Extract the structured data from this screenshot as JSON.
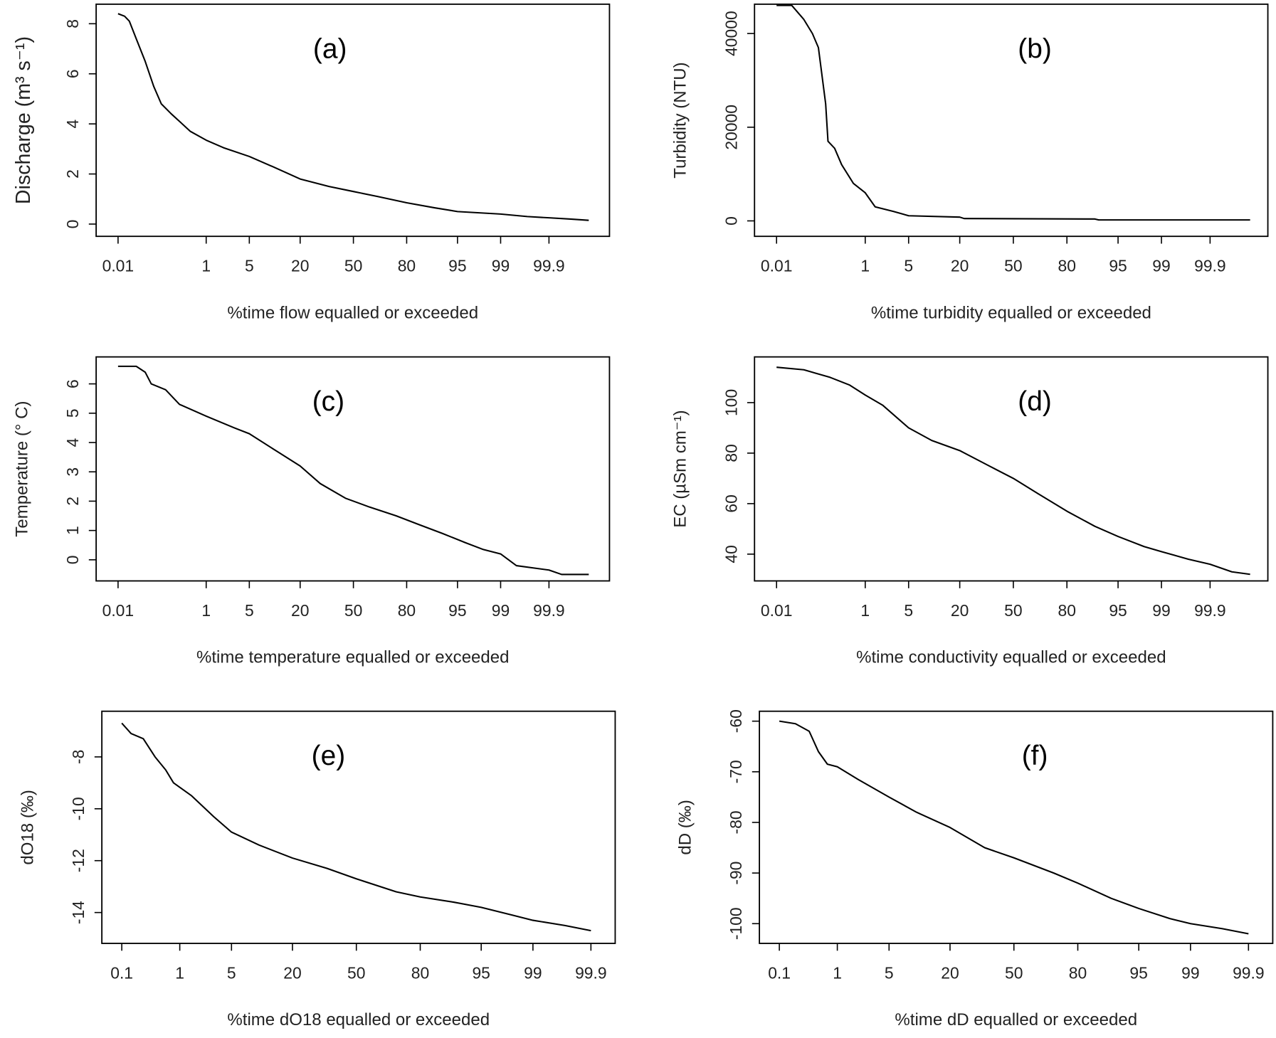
{
  "chart_data": [
    {
      "type": "line",
      "title": "(a)",
      "x_label": "%time flow equalled or exceeded",
      "y_label": "Discharge (m³ s⁻¹)",
      "xscale": "probit",
      "color": "#000000",
      "x": [
        0.01,
        0.015,
        0.02,
        0.03,
        0.05,
        0.08,
        0.12,
        0.2,
        0.3,
        0.5,
        1,
        2,
        5,
        10,
        20,
        35,
        50,
        65,
        80,
        90,
        95,
        99,
        99.7,
        99.9,
        99.97,
        99.99
      ],
      "values": [
        8.4,
        8.3,
        8.1,
        7.4,
        6.5,
        5.5,
        4.8,
        4.4,
        4.1,
        3.7,
        3.35,
        3.05,
        2.7,
        2.3,
        1.8,
        1.5,
        1.3,
        1.1,
        0.85,
        0.65,
        0.5,
        0.4,
        0.3,
        0.25,
        0.2,
        0.15
      ],
      "xlim": [
        0.0024,
        99.9974
      ],
      "xticks": [
        0.01,
        1,
        5,
        20,
        50,
        80,
        95,
        99,
        99.9
      ],
      "ylim": [
        -0.49,
        8.78
      ],
      "yticks": [
        0,
        2,
        4,
        6,
        8
      ]
    },
    {
      "type": "line",
      "title": "(b)",
      "x_label": "%time turbidity equalled or exceeded",
      "y_label": "Turbidity  (NTU)",
      "xscale": "probit",
      "color": "#000000",
      "x": [
        0.01,
        0.025,
        0.05,
        0.08,
        0.11,
        0.16,
        0.18,
        0.25,
        0.35,
        0.6,
        1,
        1.5,
        3,
        5,
        20,
        22,
        90,
        91,
        99.99
      ],
      "values": [
        46000,
        46000,
        43000,
        40000,
        37000,
        25000,
        17000,
        15500,
        12000,
        8000,
        6000,
        3000,
        2000,
        1100,
        800,
        500,
        400,
        200,
        200
      ],
      "xlim": [
        0.0024,
        99.9968
      ],
      "xticks": [
        0.01,
        1,
        5,
        20,
        50,
        80,
        95,
        99,
        99.9
      ],
      "ylim": [
        -3300,
        46260
      ],
      "yticks": [
        0,
        20000,
        40000
      ]
    },
    {
      "type": "line",
      "title": "(c)",
      "x_label": "%time temperature equalled or exceeded",
      "y_label": "Temperature (° C)",
      "xscale": "probit",
      "color": "#000000",
      "x": [
        0.01,
        0.03,
        0.05,
        0.07,
        0.15,
        0.3,
        1,
        3,
        5,
        10,
        20,
        30,
        45,
        60,
        75,
        85,
        92,
        96,
        98,
        99,
        99.5,
        99.9,
        99.95,
        99.99
      ],
      "values": [
        6.6,
        6.6,
        6.4,
        6.0,
        5.8,
        5.3,
        4.9,
        4.5,
        4.3,
        3.8,
        3.2,
        2.6,
        2.1,
        1.8,
        1.5,
        1.2,
        0.9,
        0.6,
        0.35,
        0.2,
        -0.2,
        -0.35,
        -0.5,
        -0.5
      ],
      "xlim": [
        0.0024,
        99.9974
      ],
      "xticks": [
        0.01,
        1,
        5,
        20,
        50,
        80,
        95,
        99,
        99.9
      ],
      "ylim": [
        -0.72,
        6.92
      ],
      "yticks": [
        0,
        1,
        2,
        3,
        4,
        5,
        6
      ]
    },
    {
      "type": "line",
      "title": "(d)",
      "x_label": "%time conductivity equalled or exceeded",
      "y_label": "EC  (µSm cm⁻¹)",
      "xscale": "probit",
      "color": "#000000",
      "x": [
        0.01,
        0.05,
        0.2,
        0.5,
        1,
        2,
        5,
        10,
        20,
        35,
        50,
        65,
        80,
        90,
        95,
        98,
        99,
        99.7,
        99.9,
        99.97,
        99.99
      ],
      "values": [
        114,
        113,
        110,
        107,
        103,
        99,
        90,
        85,
        81,
        75,
        70,
        64,
        57,
        51,
        47,
        43,
        41,
        38,
        36,
        33,
        32
      ],
      "xlim": [
        0.0024,
        99.9968
      ],
      "xticks": [
        0.01,
        1,
        5,
        20,
        50,
        80,
        95,
        99,
        99.9
      ],
      "ylim": [
        29.4,
        118.1
      ],
      "yticks": [
        40,
        60,
        80,
        100
      ]
    },
    {
      "type": "line",
      "title": "(e)",
      "x_label": "%time dO18 equalled or exceeded",
      "y_label": "dO18  (‰)",
      "xscale": "probit",
      "color": "#000000",
      "x": [
        0.1,
        0.15,
        0.25,
        0.4,
        0.6,
        0.8,
        1.5,
        3,
        5,
        10,
        20,
        35,
        50,
        70,
        80,
        90,
        95,
        98,
        99,
        99.7,
        99.9
      ],
      "values": [
        -6.7,
        -7.1,
        -7.3,
        -8.0,
        -8.5,
        -9.0,
        -9.5,
        -10.3,
        -10.9,
        -11.4,
        -11.9,
        -12.3,
        -12.7,
        -13.2,
        -13.4,
        -13.6,
        -13.8,
        -14.1,
        -14.3,
        -14.5,
        -14.7
      ],
      "xlim": [
        0.04,
        99.9675
      ],
      "xticks": [
        0.1,
        1,
        5,
        20,
        50,
        80,
        95,
        99,
        99.9
      ],
      "ylim": [
        -15.19,
        -6.24
      ],
      "yticks": [
        -14,
        -12,
        -10,
        -8
      ]
    },
    {
      "type": "line",
      "title": "(f)",
      "x_label": "%time dD equalled or exceeded",
      "y_label": "dD  (‰)",
      "xscale": "probit",
      "color": "#000000",
      "x": [
        0.1,
        0.2,
        0.35,
        0.5,
        0.7,
        1,
        2,
        5,
        10,
        20,
        35,
        50,
        70,
        80,
        90,
        95,
        98,
        99,
        99.7,
        99.9
      ],
      "values": [
        -60,
        -60.5,
        -62,
        -66,
        -68.5,
        -69,
        -71.5,
        -75,
        -78,
        -81,
        -85,
        -87,
        -90,
        -92,
        -95,
        -97,
        -99,
        -100,
        -101,
        -102
      ],
      "xlim": [
        0.04,
        99.9675
      ],
      "xticks": [
        0.1,
        1,
        5,
        20,
        50,
        80,
        95,
        99,
        99.9
      ],
      "ylim": [
        -103.9,
        -58.04
      ],
      "yticks": [
        -100,
        -90,
        -80,
        -70,
        -60
      ]
    }
  ]
}
